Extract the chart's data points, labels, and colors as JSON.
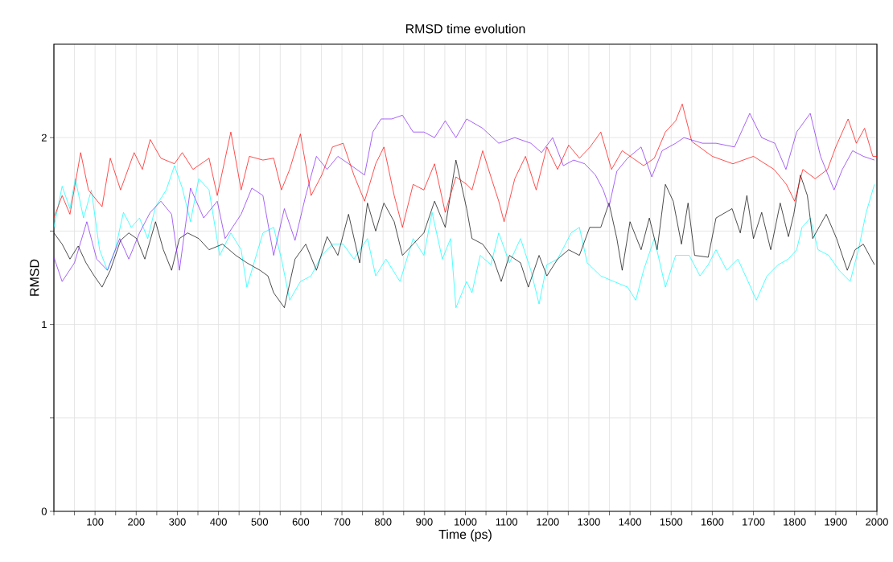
{
  "chart_data": {
    "type": "line",
    "title": "RMSD time evolution",
    "xlabel": "Time (ps)",
    "ylabel": "RMSD",
    "xlim": [
      0,
      2000
    ],
    "ylim": [
      0,
      2.5
    ],
    "xticks": [
      {
        "value": 0,
        "label": null
      },
      {
        "value": 50,
        "label": null
      },
      100,
      {
        "value": 150,
        "label": null
      },
      200,
      {
        "value": 250,
        "label": null
      },
      300,
      {
        "value": 350,
        "label": null
      },
      400,
      {
        "value": 450,
        "label": null
      },
      500,
      {
        "value": 550,
        "label": null
      },
      600,
      {
        "value": 650,
        "label": null
      },
      700,
      {
        "value": 750,
        "label": null
      },
      800,
      {
        "value": 850,
        "label": null
      },
      900,
      {
        "value": 950,
        "label": null
      },
      1000,
      {
        "value": 1050,
        "label": null
      },
      1100,
      {
        "value": 1150,
        "label": null
      },
      1200,
      {
        "value": 1250,
        "label": null
      },
      1300,
      {
        "value": 1350,
        "label": null
      },
      1400,
      {
        "value": 1450,
        "label": null
      },
      1500,
      {
        "value": 1550,
        "label": null
      },
      1600,
      {
        "value": 1650,
        "label": null
      },
      1700,
      {
        "value": 1750,
        "label": null
      },
      1800,
      {
        "value": 1850,
        "label": null
      },
      1900,
      {
        "value": 1950,
        "label": null
      },
      2000
    ],
    "yticks": [
      0,
      {
        "value": 0.5,
        "label": null
      },
      1,
      {
        "value": 1.5,
        "label": null
      },
      2
    ],
    "grid": true,
    "series": [
      {
        "color": "#00ffff",
        "x": [
          0,
          20,
          39,
          52,
          72,
          91,
          111,
          130,
          149,
          169,
          188,
          208,
          228,
          247,
          273,
          293,
          312,
          332,
          352,
          377,
          403,
          430,
          455,
          469,
          489,
          508,
          534,
          553,
          573,
          599,
          625,
          651,
          677,
          703,
          729,
          762,
          782,
          807,
          841,
          873,
          899,
          919,
          944,
          964,
          977,
          1003,
          1016,
          1036,
          1062,
          1081,
          1107,
          1134,
          1159,
          1179,
          1198,
          1224,
          1257,
          1277,
          1296,
          1329,
          1361,
          1394,
          1414,
          1433,
          1459,
          1486,
          1511,
          1544,
          1570,
          1590,
          1609,
          1635,
          1662,
          1687,
          1707,
          1733,
          1760,
          1785,
          1805,
          1818,
          1838,
          1857,
          1883,
          1908,
          1935,
          1955,
          1974,
          1994
        ],
        "values": [
          1.52,
          1.74,
          1.62,
          1.78,
          1.57,
          1.72,
          1.4,
          1.29,
          1.4,
          1.6,
          1.52,
          1.57,
          1.46,
          1.63,
          1.72,
          1.85,
          1.73,
          1.55,
          1.78,
          1.72,
          1.37,
          1.49,
          1.4,
          1.2,
          1.35,
          1.49,
          1.52,
          1.35,
          1.13,
          1.23,
          1.26,
          1.37,
          1.43,
          1.43,
          1.35,
          1.46,
          1.26,
          1.35,
          1.23,
          1.46,
          1.37,
          1.6,
          1.35,
          1.46,
          1.09,
          1.23,
          1.17,
          1.37,
          1.32,
          1.49,
          1.33,
          1.46,
          1.29,
          1.11,
          1.32,
          1.35,
          1.49,
          1.52,
          1.33,
          1.26,
          1.23,
          1.2,
          1.13,
          1.29,
          1.46,
          1.2,
          1.37,
          1.37,
          1.26,
          1.32,
          1.4,
          1.29,
          1.35,
          1.23,
          1.13,
          1.26,
          1.32,
          1.35,
          1.4,
          1.52,
          1.57,
          1.4,
          1.37,
          1.29,
          1.23,
          1.4,
          1.6,
          1.75
        ]
      },
      {
        "color": "#000000",
        "x": [
          0,
          20,
          39,
          59,
          78,
          98,
          117,
          137,
          162,
          182,
          201,
          221,
          247,
          266,
          286,
          305,
          325,
          352,
          377,
          410,
          442,
          469,
          501,
          520,
          534,
          560,
          586,
          612,
          638,
          664,
          690,
          716,
          743,
          762,
          782,
          802,
          827,
          847,
          873,
          899,
          925,
          951,
          977,
          1003,
          1016,
          1042,
          1068,
          1087,
          1107,
          1134,
          1153,
          1179,
          1198,
          1224,
          1251,
          1277,
          1302,
          1329,
          1349,
          1368,
          1381,
          1400,
          1427,
          1447,
          1466,
          1486,
          1505,
          1525,
          1541,
          1557,
          1590,
          1609,
          1648,
          1668,
          1684,
          1700,
          1720,
          1742,
          1765,
          1785,
          1798,
          1814,
          1831,
          1844,
          1877,
          1902,
          1928,
          1947,
          1967,
          1994
        ],
        "values": [
          1.49,
          1.43,
          1.35,
          1.42,
          1.33,
          1.26,
          1.2,
          1.29,
          1.45,
          1.49,
          1.46,
          1.35,
          1.55,
          1.4,
          1.29,
          1.46,
          1.49,
          1.46,
          1.4,
          1.43,
          1.37,
          1.33,
          1.29,
          1.26,
          1.17,
          1.09,
          1.35,
          1.43,
          1.29,
          1.47,
          1.37,
          1.59,
          1.33,
          1.65,
          1.5,
          1.65,
          1.55,
          1.37,
          1.43,
          1.49,
          1.66,
          1.52,
          1.88,
          1.62,
          1.46,
          1.43,
          1.35,
          1.23,
          1.37,
          1.33,
          1.2,
          1.37,
          1.26,
          1.35,
          1.4,
          1.37,
          1.52,
          1.52,
          1.65,
          1.46,
          1.29,
          1.55,
          1.4,
          1.57,
          1.4,
          1.75,
          1.66,
          1.43,
          1.65,
          1.37,
          1.36,
          1.57,
          1.62,
          1.49,
          1.69,
          1.46,
          1.6,
          1.4,
          1.65,
          1.47,
          1.59,
          1.8,
          1.69,
          1.46,
          1.59,
          1.46,
          1.29,
          1.4,
          1.43,
          1.32
        ]
      },
      {
        "color": "#8020f0",
        "x": [
          0,
          20,
          50,
          80,
          104,
          130,
          160,
          182,
          208,
          234,
          260,
          286,
          305,
          332,
          364,
          397,
          416,
          455,
          481,
          508,
          534,
          560,
          586,
          612,
          638,
          664,
          690,
          723,
          755,
          775,
          795,
          821,
          847,
          873,
          899,
          925,
          951,
          977,
          1003,
          1042,
          1081,
          1120,
          1159,
          1185,
          1212,
          1238,
          1263,
          1290,
          1316,
          1335,
          1349,
          1368,
          1394,
          1427,
          1453,
          1478,
          1511,
          1531,
          1576,
          1609,
          1654,
          1691,
          1720,
          1752,
          1779,
          1805,
          1838,
          1863,
          1896,
          1916,
          1941,
          1967,
          1994
        ],
        "values": [
          1.36,
          1.23,
          1.33,
          1.55,
          1.35,
          1.29,
          1.46,
          1.35,
          1.49,
          1.6,
          1.66,
          1.59,
          1.29,
          1.73,
          1.57,
          1.66,
          1.46,
          1.59,
          1.73,
          1.69,
          1.37,
          1.62,
          1.45,
          1.69,
          1.9,
          1.83,
          1.9,
          1.85,
          1.8,
          2.03,
          2.1,
          2.1,
          2.12,
          2.03,
          2.03,
          2.0,
          2.09,
          2.0,
          2.1,
          2.05,
          1.97,
          2.0,
          1.97,
          1.92,
          2.0,
          1.85,
          1.88,
          1.86,
          1.8,
          1.72,
          1.63,
          1.82,
          1.89,
          1.95,
          1.79,
          1.93,
          1.97,
          2.0,
          1.97,
          1.97,
          1.95,
          2.13,
          2.0,
          1.97,
          1.83,
          2.03,
          2.13,
          1.9,
          1.72,
          1.83,
          1.93,
          1.9,
          1.88
        ]
      },
      {
        "color": "#ff0000",
        "x": [
          0,
          20,
          39,
          65,
          84,
          117,
          137,
          162,
          195,
          215,
          234,
          260,
          293,
          312,
          338,
          377,
          397,
          430,
          455,
          475,
          508,
          534,
          553,
          573,
          599,
          625,
          651,
          677,
          703,
          729,
          755,
          782,
          802,
          827,
          847,
          873,
          899,
          925,
          951,
          977,
          1003,
          1016,
          1042,
          1062,
          1081,
          1094,
          1120,
          1146,
          1172,
          1198,
          1224,
          1251,
          1277,
          1303,
          1329,
          1355,
          1381,
          1407,
          1433,
          1459,
          1486,
          1511,
          1527,
          1550,
          1600,
          1650,
          1700,
          1750,
          1780,
          1800,
          1820,
          1850,
          1880,
          1900,
          1930,
          1950,
          1970,
          1990,
          2000
        ],
        "values": [
          1.57,
          1.69,
          1.59,
          1.92,
          1.72,
          1.63,
          1.89,
          1.72,
          1.92,
          1.83,
          1.99,
          1.89,
          1.86,
          1.92,
          1.83,
          1.89,
          1.69,
          2.03,
          1.72,
          1.9,
          1.88,
          1.89,
          1.72,
          1.83,
          2.02,
          1.69,
          1.8,
          1.95,
          1.97,
          1.8,
          1.66,
          1.86,
          1.95,
          1.69,
          1.52,
          1.75,
          1.72,
          1.86,
          1.6,
          1.79,
          1.75,
          1.72,
          1.93,
          1.79,
          1.66,
          1.55,
          1.78,
          1.9,
          1.72,
          1.95,
          1.83,
          1.96,
          1.89,
          1.95,
          2.03,
          1.83,
          1.93,
          1.89,
          1.85,
          1.89,
          2.03,
          2.09,
          2.18,
          1.98,
          1.9,
          1.86,
          1.9,
          1.83,
          1.75,
          1.66,
          1.83,
          1.78,
          1.83,
          1.95,
          2.1,
          1.97,
          2.05,
          1.9,
          1.9
        ]
      }
    ]
  }
}
